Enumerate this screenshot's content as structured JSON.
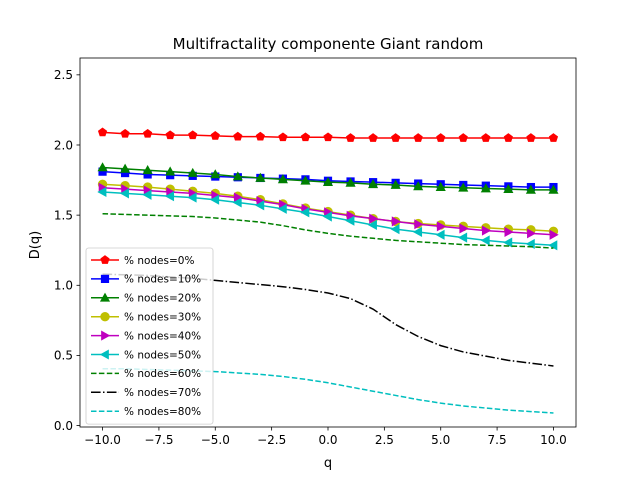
{
  "chart_data": {
    "type": "line",
    "title": "Multifractality componente Giant random",
    "xlabel": "q",
    "ylabel": "D(q)",
    "xlim": [
      -11,
      11
    ],
    "ylim": [
      -0.01,
      2.62
    ],
    "xticks": [
      -10.0,
      -7.5,
      -5.0,
      -2.5,
      0.0,
      2.5,
      5.0,
      7.5,
      10.0
    ],
    "xtick_labels": [
      "−10.0",
      "−7.5",
      "−5.0",
      "−2.5",
      "0.0",
      "2.5",
      "5.0",
      "7.5",
      "10.0"
    ],
    "yticks": [
      0.0,
      0.5,
      1.0,
      1.5,
      2.0,
      2.5
    ],
    "ytick_labels": [
      "0.0",
      "0.5",
      "1.0",
      "1.5",
      "2.0",
      "2.5"
    ],
    "grid": false,
    "legend_position": "lower-left",
    "x": [
      -10,
      -9,
      -8,
      -7,
      -6,
      -5,
      -4,
      -3,
      -2,
      -1,
      0,
      1,
      2,
      3,
      4,
      5,
      6,
      7,
      8,
      9,
      10
    ],
    "series": [
      {
        "name": "% nodes=0%",
        "color": "#ff0000",
        "marker": "pentagon",
        "linestyle": "solid",
        "values": [
          2.09,
          2.08,
          2.08,
          2.07,
          2.07,
          2.065,
          2.06,
          2.06,
          2.055,
          2.055,
          2.055,
          2.05,
          2.05,
          2.05,
          2.05,
          2.05,
          2.05,
          2.05,
          2.05,
          2.05,
          2.05
        ]
      },
      {
        "name": "% nodes=10%",
        "color": "#0000ff",
        "marker": "square",
        "linestyle": "solid",
        "values": [
          1.81,
          1.8,
          1.79,
          1.785,
          1.78,
          1.775,
          1.77,
          1.765,
          1.76,
          1.755,
          1.745,
          1.74,
          1.735,
          1.73,
          1.725,
          1.72,
          1.715,
          1.71,
          1.705,
          1.7,
          1.7
        ]
      },
      {
        "name": "% nodes=20%",
        "color": "#008000",
        "marker": "triangle-up",
        "linestyle": "solid",
        "values": [
          1.84,
          1.83,
          1.82,
          1.81,
          1.8,
          1.79,
          1.775,
          1.765,
          1.755,
          1.745,
          1.735,
          1.73,
          1.72,
          1.715,
          1.705,
          1.7,
          1.695,
          1.69,
          1.685,
          1.68,
          1.68
        ]
      },
      {
        "name": "% nodes=30%",
        "color": "#bfbf00",
        "marker": "circle",
        "linestyle": "solid",
        "values": [
          1.72,
          1.71,
          1.7,
          1.685,
          1.67,
          1.655,
          1.635,
          1.61,
          1.58,
          1.55,
          1.525,
          1.5,
          1.475,
          1.455,
          1.44,
          1.43,
          1.42,
          1.41,
          1.4,
          1.395,
          1.385
        ]
      },
      {
        "name": "% nodes=40%",
        "color": "#bf00bf",
        "marker": "triangle-right",
        "linestyle": "solid",
        "values": [
          1.695,
          1.685,
          1.675,
          1.665,
          1.655,
          1.64,
          1.625,
          1.6,
          1.575,
          1.545,
          1.52,
          1.495,
          1.475,
          1.455,
          1.435,
          1.42,
          1.405,
          1.39,
          1.38,
          1.37,
          1.36
        ]
      },
      {
        "name": "% nodes=50%",
        "color": "#00bfbf",
        "marker": "triangle-left",
        "linestyle": "solid",
        "values": [
          1.665,
          1.655,
          1.645,
          1.635,
          1.625,
          1.61,
          1.59,
          1.57,
          1.545,
          1.52,
          1.49,
          1.46,
          1.43,
          1.4,
          1.38,
          1.36,
          1.34,
          1.32,
          1.305,
          1.295,
          1.285
        ]
      },
      {
        "name": "% nodes=60%",
        "color": "#008000",
        "marker": "none",
        "linestyle": "dashed",
        "values": [
          1.51,
          1.505,
          1.5,
          1.495,
          1.49,
          1.48,
          1.465,
          1.45,
          1.425,
          1.395,
          1.37,
          1.35,
          1.335,
          1.32,
          1.31,
          1.3,
          1.29,
          1.285,
          1.28,
          1.275,
          1.265
        ]
      },
      {
        "name": "% nodes=70%",
        "color": "#000000",
        "marker": "none",
        "linestyle": "dashdot",
        "values": [
          1.08,
          1.075,
          1.07,
          1.06,
          1.05,
          1.035,
          1.02,
          1.005,
          0.99,
          0.97,
          0.945,
          0.905,
          0.83,
          0.72,
          0.635,
          0.57,
          0.525,
          0.495,
          0.465,
          0.445,
          0.425
        ]
      },
      {
        "name": "% nodes=80%",
        "color": "#00bfbf",
        "marker": "none",
        "linestyle": "dashed",
        "values": [
          0.405,
          0.405,
          0.4,
          0.395,
          0.39,
          0.385,
          0.375,
          0.365,
          0.35,
          0.33,
          0.305,
          0.275,
          0.245,
          0.215,
          0.185,
          0.16,
          0.14,
          0.125,
          0.11,
          0.1,
          0.09
        ]
      }
    ]
  }
}
